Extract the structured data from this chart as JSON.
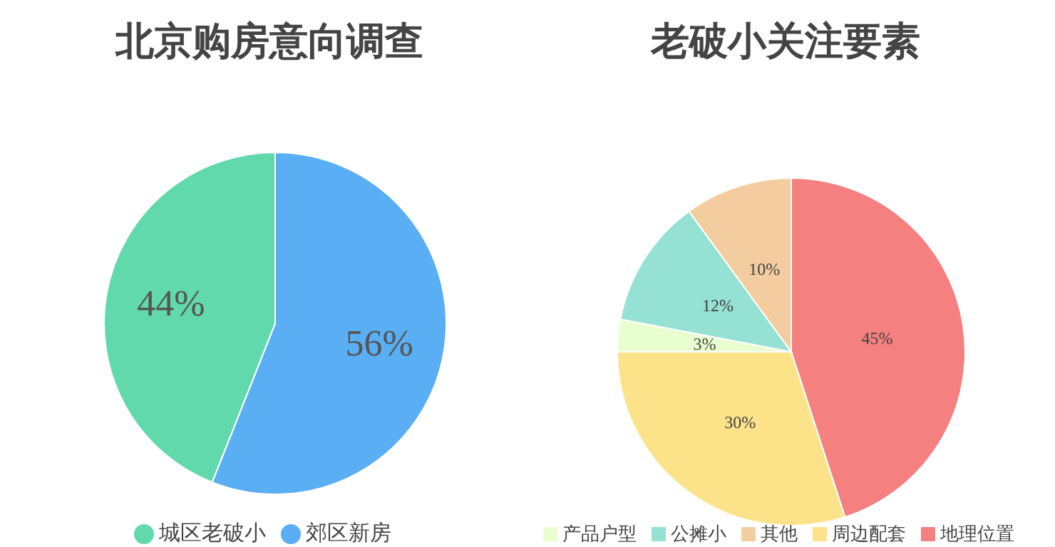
{
  "chart_data": [
    {
      "type": "pie",
      "title": "北京购房意向调查",
      "categories": [
        "郊区新房",
        "城区老破小"
      ],
      "values": [
        56,
        44
      ],
      "colors": [
        "#5aaef3",
        "#62d9ad"
      ],
      "value_labels": [
        "56%",
        "44%"
      ],
      "legend": "bottom"
    },
    {
      "type": "pie",
      "title": "老破小关注要素",
      "categories": [
        "地理位置",
        "周边配套",
        "产品户型",
        "公摊小",
        "其他"
      ],
      "values": [
        45,
        30,
        3,
        12,
        10
      ],
      "colors": [
        "#f58080",
        "#fce38a",
        "#eaffd0",
        "#95e1d3",
        "#f3cd9f"
      ],
      "value_labels": [
        "45%",
        "30%",
        "3%",
        "12%",
        "10%"
      ],
      "legend": "bottom"
    }
  ]
}
